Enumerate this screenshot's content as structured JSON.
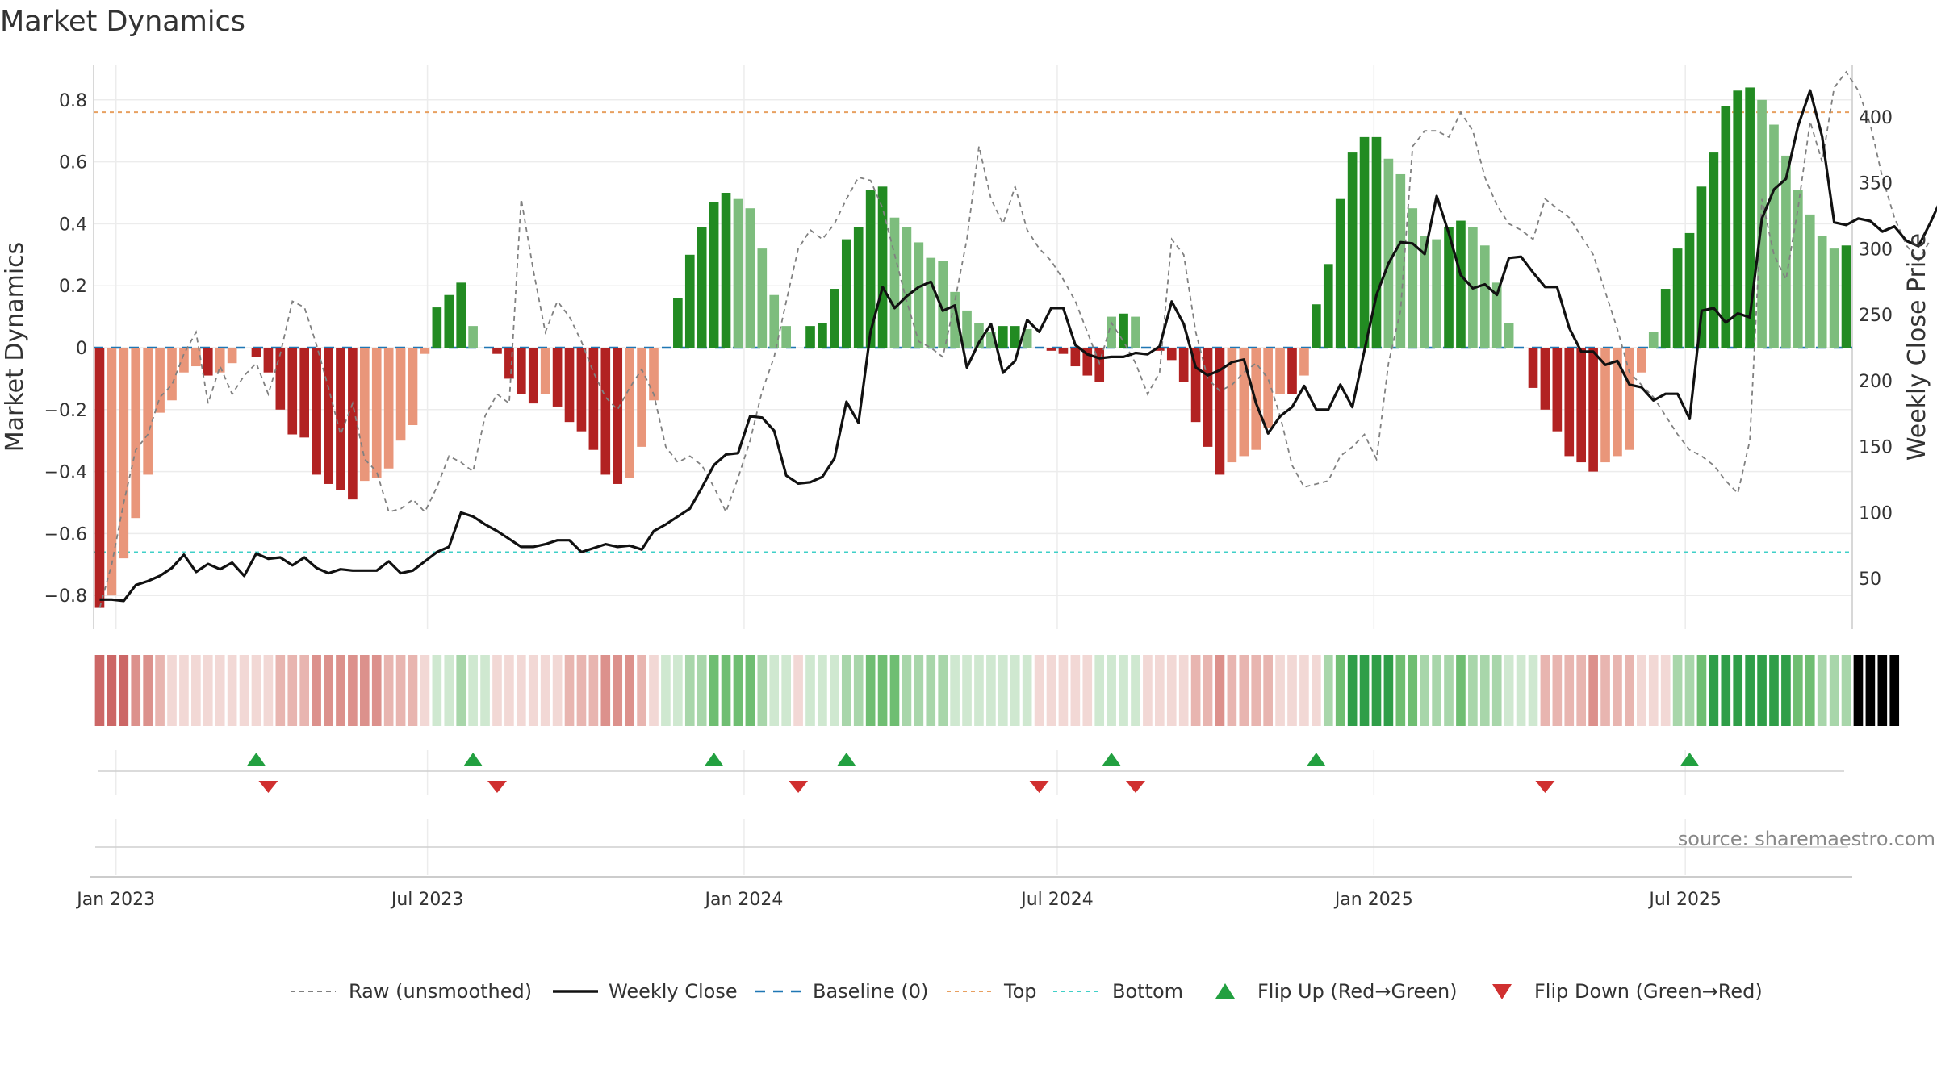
{
  "chart_data": {
    "type": "bar",
    "title": "Market Dynamics",
    "ylabel_left": "Market Dynamics",
    "ylabel_right": "Weekly Close Price",
    "source": "source: sharemaestro.com",
    "ylim_left": [
      -0.85,
      0.9
    ],
    "ylim_right": [
      28,
      440
    ],
    "y_ticks_left": [
      -0.8,
      -0.6,
      -0.4,
      -0.2,
      0,
      0.2,
      0.4,
      0.6,
      0.8
    ],
    "y_tick_labels_left": [
      "−0.8",
      "−0.6",
      "−0.4",
      "−0.2",
      "0",
      "0.2",
      "0.4",
      "0.6",
      "0.8"
    ],
    "y_ticks_right": [
      50,
      100,
      150,
      200,
      250,
      300,
      350,
      400
    ],
    "y_tick_labels_right": [
      "50",
      "100",
      "150",
      "200",
      "250",
      "300",
      "350",
      "400"
    ],
    "x_start": "2022-12-19",
    "x_ticks": [
      "2023-01-01",
      "2023-07-01",
      "2024-01-01",
      "2024-07-01",
      "2025-01-01",
      "2025-07-01"
    ],
    "x_tick_labels": [
      "Jan 2023",
      "Jul 2023",
      "Jan 2024",
      "Jul 2024",
      "Jan 2025",
      "Jul 2025"
    ],
    "top_threshold": 0.76,
    "bottom_threshold": -0.66,
    "baseline": 0,
    "grid": true,
    "legend_position": "bottom",
    "colors": {
      "strong_red": "#b22222",
      "weak_red": "#e9967a",
      "strong_green": "#228b22",
      "weak_green": "#7dbd7d",
      "raw": "#808080",
      "close": "#111111",
      "baseline": "#1f77b4",
      "top": "#e8a060",
      "bottom": "#40d0c8",
      "flip_up": "#22a040",
      "flip_down": "#d03030"
    },
    "series": [
      {
        "name": "Market Dynamics",
        "values": [
          -0.84,
          -0.8,
          -0.68,
          -0.55,
          -0.41,
          -0.21,
          -0.17,
          -0.08,
          -0.06,
          -0.09,
          -0.08,
          -0.05,
          0,
          -0.03,
          -0.08,
          -0.2,
          -0.28,
          -0.29,
          -0.41,
          -0.44,
          -0.46,
          -0.49,
          -0.43,
          -0.42,
          -0.39,
          -0.3,
          -0.25,
          -0.02,
          0.13,
          0.17,
          0.21,
          0.07,
          0,
          -0.02,
          -0.1,
          -0.15,
          -0.18,
          -0.15,
          -0.19,
          -0.24,
          -0.27,
          -0.33,
          -0.41,
          -0.44,
          -0.42,
          -0.32,
          -0.17,
          0,
          0.16,
          0.3,
          0.39,
          0.47,
          0.5,
          0.48,
          0.45,
          0.32,
          0.17,
          0.07,
          0,
          0.07,
          0.08,
          0.19,
          0.35,
          0.39,
          0.51,
          0.52,
          0.42,
          0.39,
          0.34,
          0.29,
          0.28,
          0.18,
          0.12,
          0.08,
          0.05,
          0.07,
          0.07,
          0.06,
          0,
          -0.01,
          -0.02,
          -0.06,
          -0.09,
          -0.11,
          0.1,
          0.11,
          0.1,
          0,
          -0.01,
          -0.04,
          -0.11,
          -0.24,
          -0.32,
          -0.41,
          -0.37,
          -0.35,
          -0.33,
          -0.26,
          -0.15,
          -0.15,
          -0.09,
          0.14,
          0.27,
          0.48,
          0.63,
          0.68,
          0.68,
          0.61,
          0.56,
          0.45,
          0.36,
          0.35,
          0.39,
          0.41,
          0.39,
          0.33,
          0.21,
          0.08,
          0,
          -0.13,
          -0.2,
          -0.27,
          -0.35,
          -0.37,
          -0.4,
          -0.37,
          -0.35,
          -0.33,
          -0.08,
          0.05,
          0.19,
          0.32,
          0.37,
          0.52,
          0.63,
          0.78,
          0.83,
          0.84,
          0.8,
          0.72,
          0.62,
          0.51,
          0.43,
          0.36,
          0.32,
          0.33
        ]
      },
      {
        "name": "Raw (unsmoothed)",
        "values": [
          -0.84,
          -0.7,
          -0.5,
          -0.33,
          -0.28,
          -0.16,
          -0.12,
          -0.02,
          0.05,
          -0.18,
          -0.06,
          -0.15,
          -0.09,
          -0.05,
          -0.15,
          -0.02,
          0.15,
          0.13,
          0.01,
          -0.13,
          -0.28,
          -0.18,
          -0.36,
          -0.4,
          -0.53,
          -0.52,
          -0.49,
          -0.53,
          -0.45,
          -0.35,
          -0.37,
          -0.4,
          -0.22,
          -0.15,
          -0.18,
          0.48,
          0.25,
          0.05,
          0.15,
          0.1,
          0.02,
          -0.08,
          -0.16,
          -0.2,
          -0.13,
          -0.07,
          -0.15,
          -0.32,
          -0.37,
          -0.35,
          -0.38,
          -0.45,
          -0.53,
          -0.42,
          -0.3,
          -0.14,
          -0.03,
          0.15,
          0.32,
          0.38,
          0.35,
          0.4,
          0.48,
          0.55,
          0.54,
          0.45,
          0.3,
          0.15,
          0.02,
          0.0,
          -0.03,
          0.15,
          0.35,
          0.65,
          0.48,
          0.4,
          0.52,
          0.38,
          0.32,
          0.28,
          0.22,
          0.15,
          0.05,
          -0.05,
          0.08,
          0.02,
          -0.05,
          -0.15,
          -0.08,
          0.35,
          0.3,
          0.05,
          -0.1,
          -0.14,
          -0.12,
          -0.08,
          -0.05,
          -0.1,
          -0.22,
          -0.38,
          -0.45,
          -0.44,
          -0.43,
          -0.35,
          -0.32,
          -0.28,
          -0.36,
          -0.05,
          0.12,
          0.65,
          0.7,
          0.7,
          0.68,
          0.76,
          0.7,
          0.55,
          0.46,
          0.4,
          0.38,
          0.35,
          0.48,
          0.45,
          0.42,
          0.36,
          0.3,
          0.18,
          0.06,
          -0.08,
          -0.12,
          -0.16,
          -0.22,
          -0.28,
          -0.33,
          -0.35,
          -0.38,
          -0.43,
          -0.47,
          -0.3,
          0.48,
          0.3,
          0.22,
          0.45,
          0.73,
          0.6,
          0.84,
          0.89,
          0.83,
          0.72,
          0.55,
          0.42,
          0.33,
          0.28,
          0.35
        ]
      },
      {
        "name": "Weekly Close",
        "values": [
          34,
          34,
          33,
          45,
          48,
          52,
          58,
          68,
          55,
          61,
          57,
          62,
          52,
          69,
          65,
          66,
          60,
          66,
          58,
          54,
          57,
          56,
          56,
          56,
          63,
          54,
          56,
          63,
          70,
          74,
          100,
          97,
          91,
          86,
          80,
          74,
          74,
          76,
          79,
          79,
          70,
          73,
          76,
          74,
          75,
          72,
          86,
          91,
          97,
          103,
          119,
          136,
          144,
          145,
          173,
          172,
          162,
          128,
          122,
          123,
          127,
          141,
          184,
          168,
          237,
          271,
          255,
          264,
          271,
          275,
          253,
          257,
          210,
          229,
          243,
          206,
          215,
          246,
          237,
          255,
          255,
          227,
          220,
          217,
          218,
          218,
          221,
          220,
          226,
          260,
          243,
          210,
          204,
          208,
          214,
          216,
          183,
          160,
          173,
          180,
          196,
          178,
          178,
          197,
          180,
          223,
          265,
          289,
          305,
          304,
          296,
          340,
          312,
          280,
          270,
          273,
          265,
          293,
          294,
          282,
          271,
          271,
          240,
          222,
          222,
          212,
          215,
          197,
          195,
          185,
          190,
          190,
          171,
          253,
          255,
          244,
          251,
          248,
          323,
          345,
          353,
          393,
          420,
          385,
          320,
          318,
          323,
          321,
          313,
          317,
          306,
          302,
          320,
          340
        ]
      }
    ],
    "regime_strip": [
      "R",
      "R",
      "R",
      "R",
      "R",
      "R",
      "R",
      "R",
      "R",
      "R",
      "R",
      "R",
      "R",
      "R",
      "R",
      "R",
      "R",
      "R",
      "R",
      "R",
      "R",
      "R",
      "R",
      "R",
      "R",
      "R",
      "R",
      "R",
      "G",
      "G",
      "G",
      "G",
      "G",
      "R",
      "R",
      "R",
      "R",
      "R",
      "R",
      "R",
      "R",
      "R",
      "R",
      "R",
      "R",
      "R",
      "R",
      "G",
      "G",
      "G",
      "G",
      "G",
      "G",
      "G",
      "G",
      "G",
      "G",
      "G",
      "R",
      "G",
      "G",
      "G",
      "G",
      "G",
      "G",
      "G",
      "G",
      "G",
      "G",
      "G",
      "G",
      "G",
      "G",
      "G",
      "G",
      "G",
      "G",
      "G",
      "R",
      "R",
      "R",
      "R",
      "R",
      "G",
      "G",
      "G",
      "G",
      "R",
      "R",
      "R",
      "R",
      "R",
      "R",
      "R",
      "R",
      "R",
      "R",
      "R",
      "R",
      "R",
      "R",
      "R",
      "G",
      "G",
      "G",
      "G",
      "G",
      "G",
      "G",
      "G",
      "G",
      "G",
      "G",
      "G",
      "G",
      "G",
      "G",
      "G",
      "G",
      "G",
      "R",
      "R",
      "R",
      "R",
      "R",
      "R",
      "R",
      "R",
      "R",
      "R",
      "R",
      "G",
      "G",
      "G",
      "G",
      "G",
      "G",
      "G",
      "G",
      "G",
      "G",
      "G",
      "G",
      "G",
      "G",
      "G",
      "G",
      "G",
      "G",
      "G"
    ],
    "flips_up": [
      13,
      31,
      51,
      62,
      84,
      101,
      132
    ],
    "flips_down": [
      14,
      33,
      58,
      78,
      86,
      120
    ],
    "legend": [
      {
        "label": "Raw (unsmoothed)",
        "kind": "dashed-gray"
      },
      {
        "label": "Weekly Close",
        "kind": "solid-black"
      },
      {
        "label": "Baseline (0)",
        "kind": "dashed-blue"
      },
      {
        "label": "Top",
        "kind": "dotted-orange"
      },
      {
        "label": "Bottom",
        "kind": "dotted-teal"
      },
      {
        "label": "Flip Up (Red→Green)",
        "kind": "triangle-up"
      },
      {
        "label": "Flip Down (Green→Red)",
        "kind": "triangle-down"
      }
    ]
  }
}
